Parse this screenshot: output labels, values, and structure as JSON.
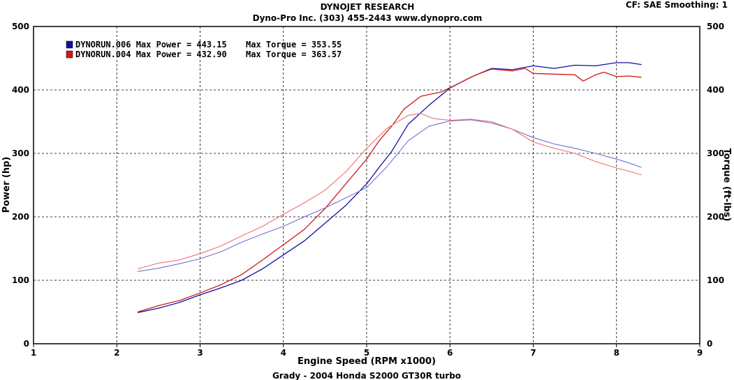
{
  "header": {
    "title": "DYNOJET RESEARCH",
    "subtitle": "Dyno-Pro Inc.  (303) 455-2443  www.dynopro.com",
    "corner": "CF: SAE  Smoothing: 1",
    "footer": "Grady - 2004 Honda S2000 GT30R turbo"
  },
  "chart_data": {
    "type": "line",
    "xlabel": "Engine Speed (RPM x1000)",
    "ylabel_left": "Power (hp)",
    "ylabel_right": "Torque (ft-lbs)",
    "xlim": [
      1,
      9
    ],
    "ylim": [
      0,
      500
    ],
    "xticks": [
      "1",
      "2",
      "3",
      "4",
      "5",
      "6",
      "7",
      "8",
      "9"
    ],
    "yticks": [
      "0",
      "100",
      "200",
      "300",
      "400",
      "500"
    ],
    "grid": true,
    "legend_position": "top-left",
    "colors": {
      "run006": "#1010a0",
      "run004": "#d01818",
      "run006_torque": "#7070d0",
      "run004_torque": "#f07070"
    },
    "legend": [
      {
        "label": "DYNORUN.006 Max Power = 443.15",
        "torque_label": "Max Torque = 353.55",
        "color": "#1010a0"
      },
      {
        "label": "DYNORUN.004 Max Power = 432.90",
        "torque_label": "Max Torque = 363.57",
        "color": "#d01818"
      }
    ],
    "series": [
      {
        "name": "DYNORUN.006",
        "kind": "power",
        "color": "#1010a0",
        "x": [
          2.25,
          2.5,
          2.75,
          3.0,
          3.25,
          3.5,
          3.75,
          4.0,
          4.25,
          4.5,
          4.75,
          5.0,
          5.15,
          5.3,
          5.5,
          5.75,
          6.0,
          6.25,
          6.5,
          6.75,
          7.0,
          7.25,
          7.5,
          7.75,
          8.0,
          8.15,
          8.3
        ],
        "y": [
          49,
          56,
          65,
          77,
          88,
          100,
          118,
          140,
          162,
          190,
          218,
          252,
          278,
          303,
          346,
          376,
          403,
          420,
          434,
          432,
          438,
          434,
          439,
          438,
          443,
          443,
          440
        ]
      },
      {
        "name": "DYNORUN.004",
        "kind": "power",
        "color": "#d01818",
        "x": [
          2.25,
          2.5,
          2.75,
          3.0,
          3.25,
          3.5,
          3.75,
          4.0,
          4.25,
          4.5,
          4.75,
          5.0,
          5.15,
          5.3,
          5.45,
          5.65,
          5.9,
          6.1,
          6.3,
          6.5,
          6.75,
          6.9,
          7.0,
          7.25,
          7.5,
          7.6,
          7.75,
          7.85,
          8.0,
          8.15,
          8.3
        ],
        "y": [
          50,
          60,
          68,
          80,
          93,
          109,
          132,
          156,
          180,
          213,
          252,
          291,
          320,
          343,
          370,
          390,
          397,
          410,
          423,
          433,
          430,
          434,
          426,
          425,
          424,
          414,
          424,
          428,
          421,
          422,
          420
        ]
      },
      {
        "name": "DYNORUN.006",
        "kind": "torque",
        "color": "#7070d0",
        "x": [
          2.25,
          2.5,
          2.75,
          3.0,
          3.25,
          3.5,
          3.75,
          4.0,
          4.25,
          4.5,
          4.75,
          5.0,
          5.25,
          5.5,
          5.75,
          6.0,
          6.25,
          6.5,
          6.75,
          7.0,
          7.25,
          7.5,
          7.75,
          8.0,
          8.15,
          8.3
        ],
        "y": [
          114,
          119,
          126,
          134,
          145,
          160,
          173,
          185,
          200,
          214,
          230,
          246,
          280,
          320,
          343,
          351,
          353,
          348,
          338,
          325,
          315,
          308,
          300,
          291,
          285,
          278
        ]
      },
      {
        "name": "DYNORUN.004",
        "kind": "torque",
        "color": "#f07070",
        "x": [
          2.25,
          2.5,
          2.75,
          3.0,
          3.25,
          3.5,
          3.75,
          4.0,
          4.25,
          4.5,
          4.75,
          5.0,
          5.25,
          5.5,
          5.65,
          5.8,
          6.0,
          6.25,
          6.5,
          6.75,
          7.0,
          7.25,
          7.5,
          7.75,
          8.0,
          8.15,
          8.3
        ],
        "y": [
          118,
          127,
          132,
          142,
          154,
          170,
          185,
          204,
          222,
          242,
          271,
          308,
          340,
          360,
          363,
          355,
          352,
          354,
          350,
          338,
          318,
          308,
          300,
          287,
          277,
          272,
          266
        ]
      }
    ]
  }
}
